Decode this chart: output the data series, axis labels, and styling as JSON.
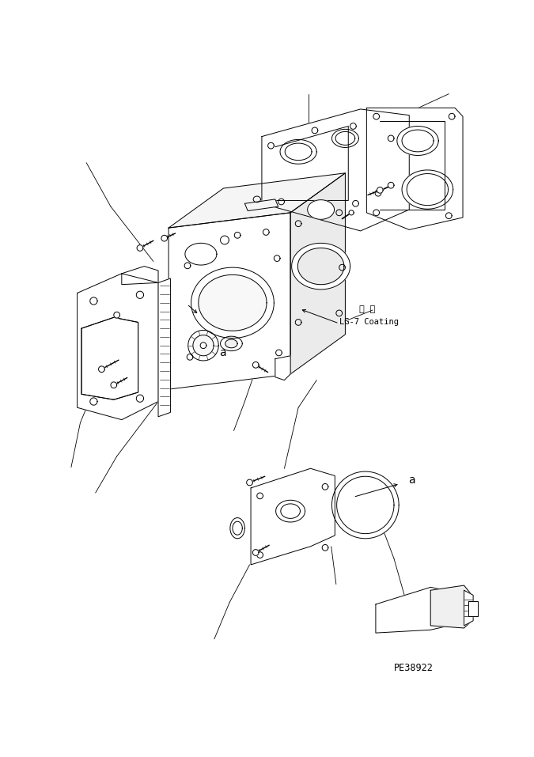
{
  "bg_color": "#ffffff",
  "lc": "#000000",
  "ann1": "塗 布",
  "ann2": "LG-7 Coating",
  "label_a": "a",
  "partnum": "PE38922",
  "lw": 0.7,
  "fig_w": 6.75,
  "fig_h": 9.57,
  "dpi": 100
}
